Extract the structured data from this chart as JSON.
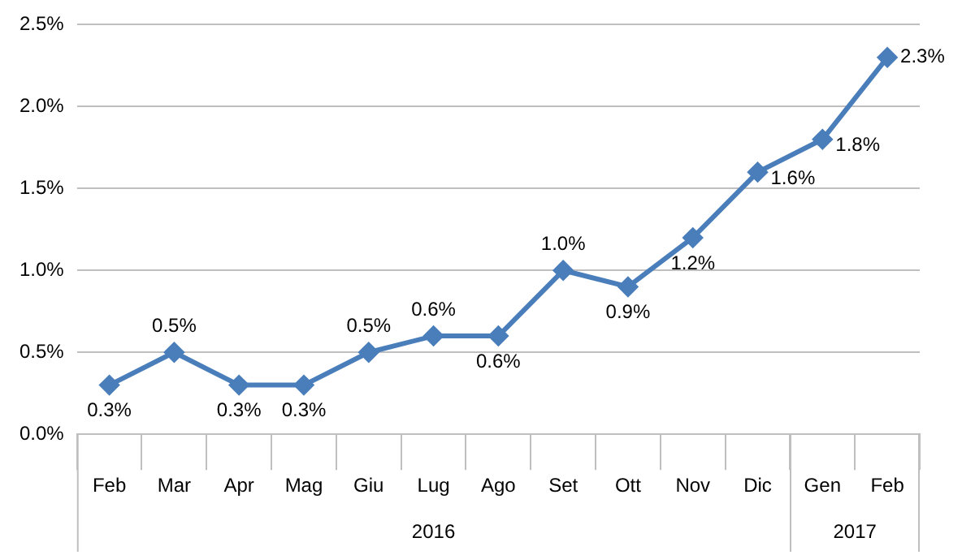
{
  "chart_data": {
    "type": "line",
    "categories": [
      "Feb",
      "Mar",
      "Apr",
      "Mag",
      "Giu",
      "Lug",
      "Ago",
      "Set",
      "Ott",
      "Nov",
      "Dic",
      "Gen",
      "Feb"
    ],
    "series": [
      {
        "color": "#4a7ebb",
        "values": [
          0.3,
          0.5,
          0.3,
          0.3,
          0.5,
          0.6,
          0.6,
          1.0,
          0.9,
          1.2,
          1.6,
          1.8,
          2.3
        ],
        "value_labels": [
          "0.3%",
          "0.5%",
          "0.3%",
          "0.3%",
          "0.5%",
          "0.6%",
          "0.6%",
          "1.0%",
          "0.9%",
          "1.2%",
          "1.6%",
          "1.8%",
          "2.3%"
        ]
      }
    ],
    "ylim": [
      0,
      2.5
    ],
    "yticks": [
      {
        "value": 0,
        "label": "0.0%"
      },
      {
        "value": 0.5,
        "label": "0.5%"
      },
      {
        "value": 1,
        "label": "1.0%"
      },
      {
        "value": 1.5,
        "label": "1.5%"
      },
      {
        "value": 2,
        "label": "2.0%"
      },
      {
        "value": 2.5,
        "label": "2.5%"
      }
    ],
    "grid": "y",
    "legend": false,
    "marker": "diamond",
    "line_style": "solid",
    "annotations": [
      "2016",
      "2017"
    ]
  }
}
